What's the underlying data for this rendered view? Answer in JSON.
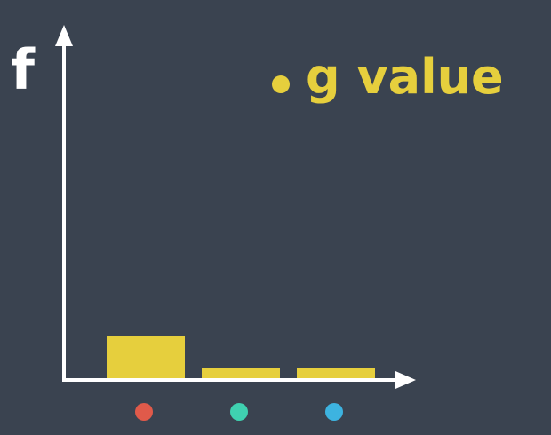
{
  "chart_data": {
    "type": "bar",
    "ylabel": "f",
    "xlabel": "",
    "categories": [
      "red",
      "green",
      "blue"
    ],
    "category_markers": [
      "#e05a4a",
      "#3fd1b0",
      "#3db3e0"
    ],
    "series": [
      {
        "name": "g value",
        "color": "#e6cf3d",
        "values": [
          1.0,
          0.25,
          0.25
        ]
      }
    ],
    "ylim": [
      0,
      8
    ],
    "grid": false,
    "legend": {
      "position": "top-right",
      "label": "g value"
    }
  },
  "colors": {
    "background": "#3a4350",
    "axis": "#ffffff",
    "bar": "#e6cf3d"
  }
}
